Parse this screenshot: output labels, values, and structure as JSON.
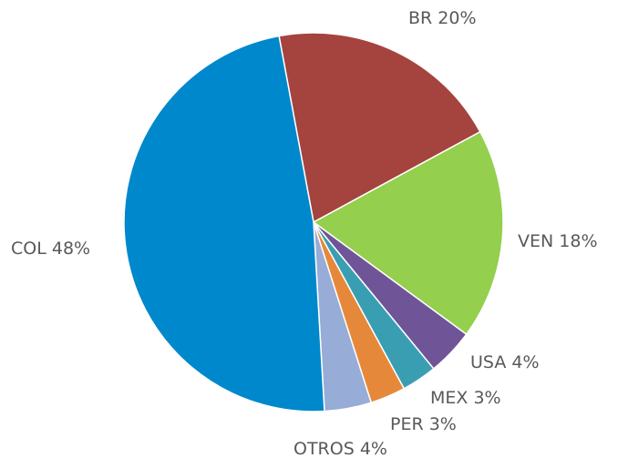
{
  "chart_data": {
    "type": "pie",
    "categories": [
      "BR",
      "VEN",
      "USA",
      "MEX",
      "PER",
      "OTROS",
      "COL"
    ],
    "values": [
      20,
      18,
      4,
      3,
      3,
      4,
      48
    ],
    "value_labels": [
      "20%",
      "18%",
      "4%",
      "3%",
      "3%",
      "4%",
      "48%"
    ],
    "colors": [
      "#a5433f",
      "#94cf4d",
      "#6f5597",
      "#3a9eb3",
      "#e6883a",
      "#97acd6",
      "#0088cc"
    ]
  }
}
